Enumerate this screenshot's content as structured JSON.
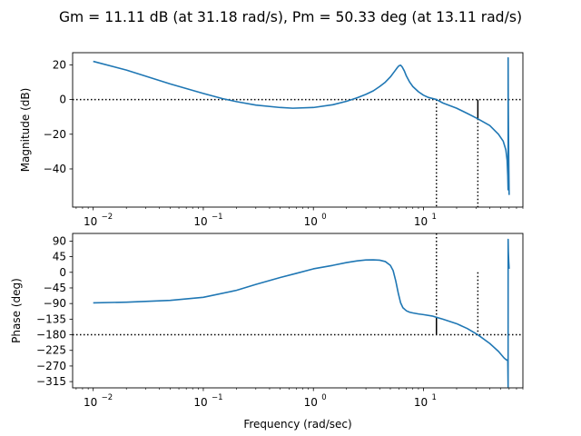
{
  "chart_data": [
    {
      "type": "line",
      "title": "Gm = 11.11 dB (at 31.18 rad/s), Pm = 50.33 deg (at 13.11 rad/s)",
      "ylabel": "Magnitude (dB)",
      "xlabel": "",
      "xscale": "log",
      "xlim": [
        0.0065,
        80
      ],
      "ylim": [
        -62,
        27
      ],
      "x_ticks": [
        0.01,
        0.1,
        1,
        10
      ],
      "x_tick_labels": [
        "10",
        "10",
        "10",
        "10"
      ],
      "x_tick_exponents": [
        "−2",
        "−1",
        "0",
        "1"
      ],
      "y_ticks": [
        20,
        0,
        -20,
        -40
      ],
      "y_tick_labels": [
        "20",
        "0",
        "−20",
        "−40"
      ],
      "reference_line": {
        "y": 0,
        "style": "dotted"
      },
      "markers": [
        {
          "kind": "dotted-vertical",
          "x": 13.11,
          "from": 0,
          "to": -62
        },
        {
          "kind": "dotted-vertical",
          "x": 31.18,
          "from": -11.11,
          "to": -62
        },
        {
          "kind": "solid-vertical",
          "x": 31.18,
          "from": 0,
          "to": -11.11
        }
      ],
      "series": [
        {
          "color": "#1f77b4",
          "x": [
            0.01,
            0.02,
            0.05,
            0.1,
            0.15,
            0.2,
            0.3,
            0.5,
            0.65,
            1.0,
            1.5,
            2.0,
            2.5,
            3.0,
            3.5,
            4.0,
            4.5,
            5.0,
            5.5,
            5.8,
            6.0,
            6.2,
            6.4,
            6.7,
            7.0,
            7.5,
            8.0,
            9.0,
            10.0,
            11.0,
            13.11,
            15.0,
            20.0,
            25.0,
            31.18,
            40.0,
            48.0,
            53.0,
            56.0,
            57.5,
            58.3,
            58.7,
            58.75,
            58.9,
            59.2,
            59.6,
            60.0
          ],
          "values": [
            22,
            17,
            9,
            3.5,
            0.5,
            -1.2,
            -3.2,
            -4.6,
            -5,
            -4.6,
            -3,
            -1,
            1,
            3,
            5,
            7.5,
            10,
            13,
            16.5,
            18.5,
            19.5,
            19.8,
            18.8,
            16.5,
            13.5,
            10,
            7.5,
            4.5,
            2.5,
            1.3,
            0,
            -2,
            -5,
            -8,
            -11.11,
            -15,
            -20,
            -24,
            -29,
            -35,
            -44,
            -52,
            24,
            0,
            -20,
            -40,
            -55
          ]
        }
      ]
    },
    {
      "type": "line",
      "title": "",
      "ylabel": "Phase (deg)",
      "xlabel": "Frequency (rad/sec)",
      "xscale": "log",
      "xlim": [
        0.0065,
        80
      ],
      "ylim": [
        -333,
        112
      ],
      "x_ticks": [
        0.01,
        0.1,
        1,
        10
      ],
      "x_tick_labels": [
        "10",
        "10",
        "10",
        "10"
      ],
      "x_tick_exponents": [
        "−2",
        "−1",
        "0",
        "1"
      ],
      "y_ticks": [
        90,
        45,
        0,
        -45,
        -90,
        -135,
        -180,
        -225,
        -270,
        -315
      ],
      "y_tick_labels": [
        "90",
        "45",
        "0",
        "−45",
        "−90",
        "−135",
        "−180",
        "−225",
        "−270",
        "−315"
      ],
      "reference_line": {
        "y": -180,
        "style": "dotted"
      },
      "markers": [
        {
          "kind": "dotted-vertical",
          "x": 13.11,
          "from": 112,
          "to": -129.67
        },
        {
          "kind": "solid-vertical",
          "x": 13.11,
          "from": -129.67,
          "to": -180
        },
        {
          "kind": "dotted-vertical",
          "x": 31.18,
          "from": 0,
          "to": -180
        }
      ],
      "series": [
        {
          "color": "#1f77b4",
          "x": [
            0.01,
            0.02,
            0.05,
            0.1,
            0.2,
            0.3,
            0.5,
            0.7,
            1.0,
            1.5,
            2.0,
            2.5,
            3.0,
            3.5,
            4.0,
            4.5,
            5.0,
            5.3,
            5.6,
            5.9,
            6.2,
            6.5,
            7.0,
            7.5,
            8.0,
            9.0,
            10.0,
            12.0,
            13.11,
            15.0,
            20.0,
            25.0,
            31.18,
            40.0,
            48.0,
            54.0,
            57.0,
            58.3,
            58.7,
            58.75,
            59.0,
            59.5,
            60.0
          ],
          "values": [
            -88,
            -86,
            -81,
            -72,
            -52,
            -35,
            -15,
            -3,
            10,
            20,
            28,
            33,
            35.5,
            36,
            35,
            31,
            20,
            5,
            -25,
            -60,
            -88,
            -102,
            -111,
            -115,
            -117,
            -120,
            -122,
            -126,
            -129.67,
            -135,
            -148,
            -162,
            -180,
            -205,
            -228,
            -247,
            -253,
            -252,
            -330,
            95,
            60,
            30,
            10
          ]
        }
      ]
    }
  ]
}
